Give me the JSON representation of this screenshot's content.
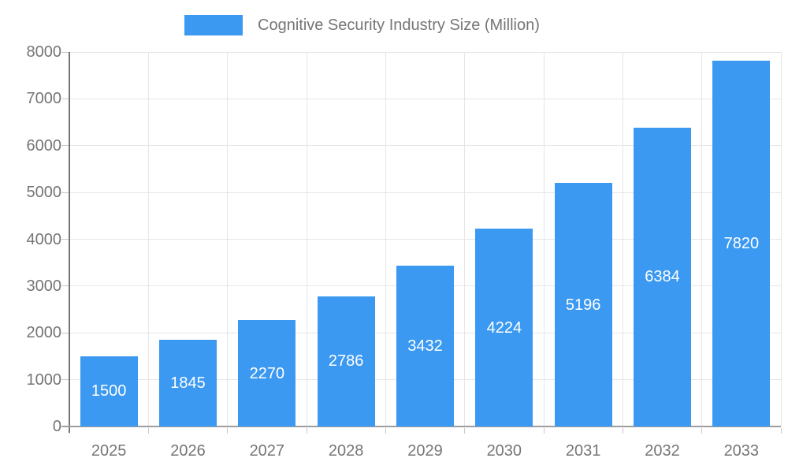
{
  "chart_data": {
    "type": "bar",
    "title": "Cognitive Security Industry Size (Million)",
    "legend": {
      "label": "Cognitive Security Industry Size (Million)",
      "position": "top"
    },
    "categories": [
      "2025",
      "2026",
      "2027",
      "2028",
      "2029",
      "2030",
      "2031",
      "2032",
      "2033"
    ],
    "series": [
      {
        "name": "Cognitive Security Industry Size (Million)",
        "values": [
          1500,
          1845,
          2270,
          2786,
          3432,
          4224,
          5196,
          6384,
          7820
        ]
      }
    ],
    "bar_value_labels": [
      "1500",
      "1845",
      "2270",
      "2786",
      "3432",
      "4224",
      "5196",
      "6384",
      "7820"
    ],
    "xlabel": "",
    "ylabel": "",
    "ylim": [
      0,
      8000
    ],
    "yticks": [
      0,
      1000,
      2000,
      3000,
      4000,
      5000,
      6000,
      7000,
      8000
    ],
    "grid": true,
    "colors": {
      "bar": "#3B99F2",
      "grid": "#E6E6E6",
      "tick": "#C9C9C9",
      "y_axis": "#757575",
      "x_axis": "#9E9E9E",
      "text": "#757575",
      "bar_label": "#FFFFFF",
      "background": "#FFFFFF"
    }
  }
}
